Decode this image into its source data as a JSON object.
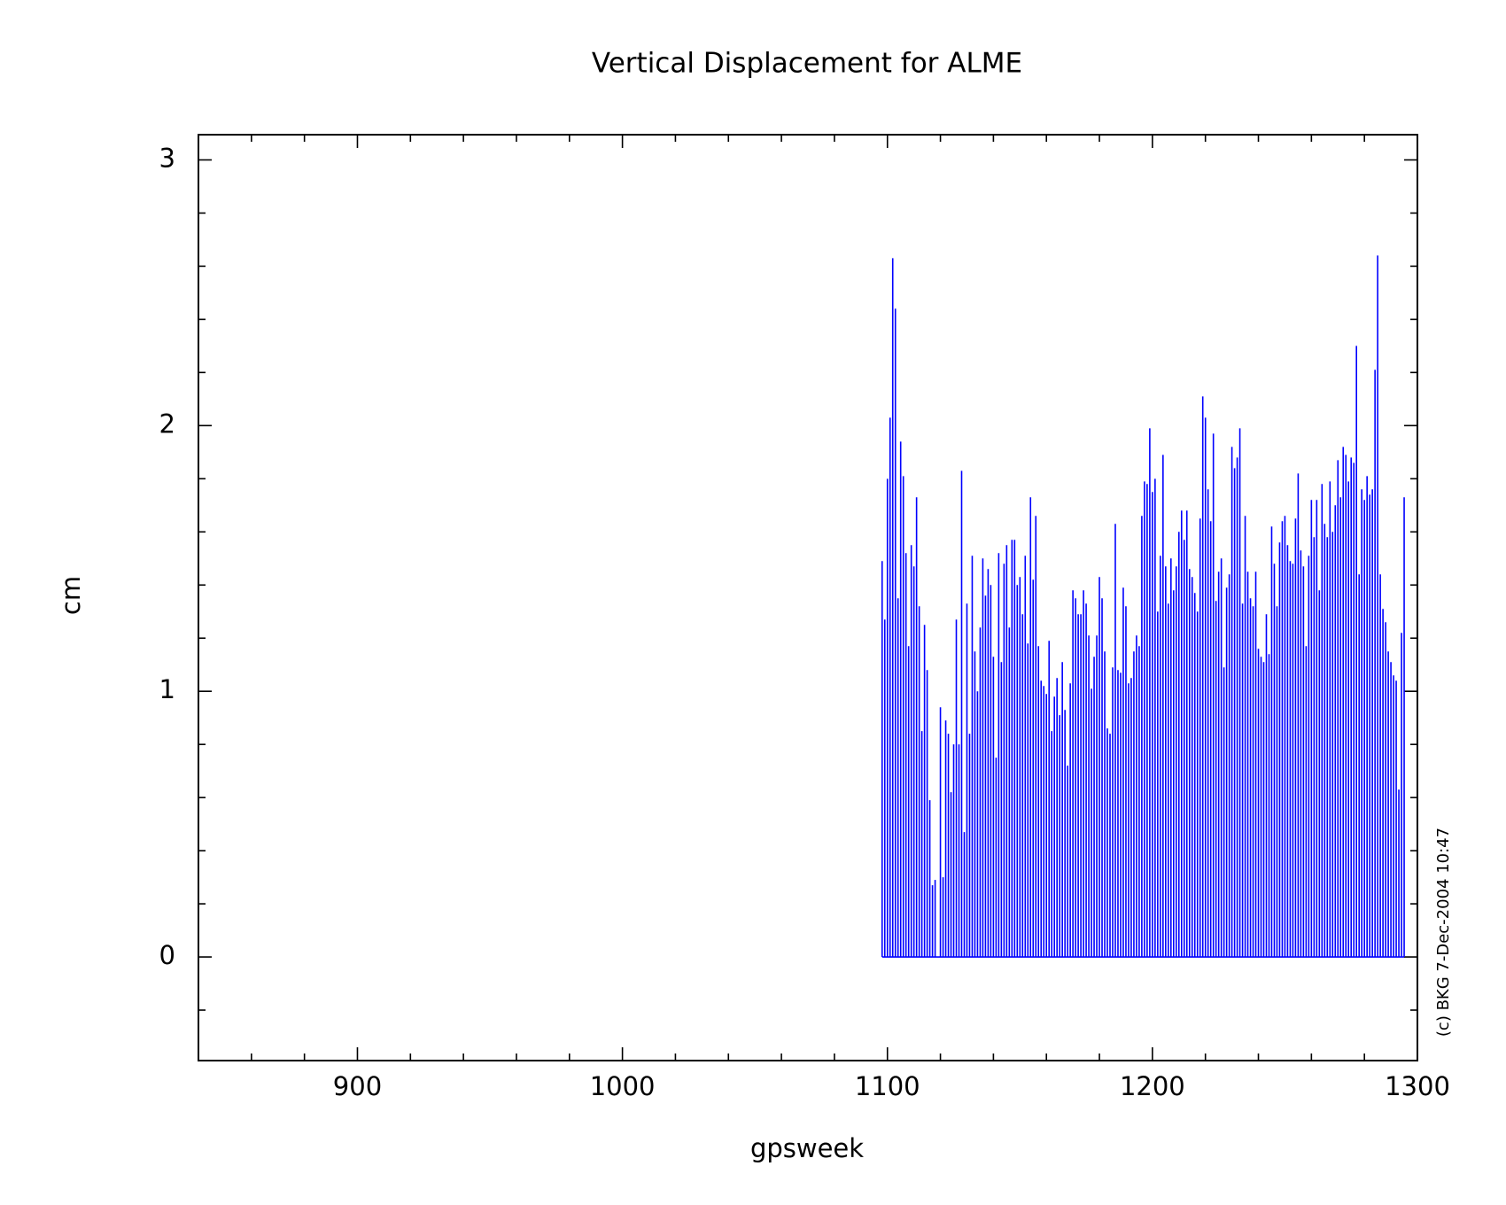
{
  "chart_data": {
    "type": "spike",
    "title": "Vertical Displacement for ALME",
    "x_label": "gpsweek",
    "y_label": "cm",
    "annotation": "(c) BKG 7-Dec-2004 10:47",
    "color": "#0000ff",
    "xlim": [
      840,
      1300
    ],
    "ylim": [
      -0.39,
      3.095
    ],
    "xticks": [
      900,
      1000,
      1100,
      1200,
      1300
    ],
    "yticks": [
      0,
      1,
      2,
      3
    ],
    "xminorticks": [
      860,
      880,
      920,
      940,
      960,
      980,
      1020,
      1040,
      1060,
      1080,
      1120,
      1140,
      1160,
      1180,
      1220,
      1240,
      1260,
      1280
    ],
    "yminorticks": [
      -0.2,
      0.2,
      0.4,
      0.6,
      0.8,
      1.2,
      1.4,
      1.6,
      1.8,
      2.2,
      2.4,
      2.6,
      2.8
    ],
    "x": [
      1098,
      1099,
      1100,
      1101,
      1102,
      1103,
      1104,
      1105,
      1106,
      1107,
      1108,
      1109,
      1110,
      1111,
      1112,
      1113,
      1114,
      1115,
      1116,
      1117,
      1118,
      1119,
      1120,
      1121,
      1122,
      1123,
      1124,
      1125,
      1126,
      1127,
      1128,
      1129,
      1130,
      1131,
      1132,
      1133,
      1134,
      1135,
      1136,
      1137,
      1138,
      1139,
      1140,
      1141,
      1142,
      1143,
      1144,
      1145,
      1146,
      1147,
      1148,
      1149,
      1150,
      1151,
      1152,
      1153,
      1154,
      1155,
      1156,
      1157,
      1158,
      1159,
      1160,
      1161,
      1162,
      1163,
      1164,
      1165,
      1166,
      1167,
      1168,
      1169,
      1170,
      1171,
      1172,
      1173,
      1174,
      1175,
      1176,
      1177,
      1178,
      1179,
      1180,
      1181,
      1182,
      1183,
      1184,
      1185,
      1186,
      1187,
      1188,
      1189,
      1190,
      1191,
      1192,
      1193,
      1194,
      1195,
      1196,
      1197,
      1198,
      1199,
      1200,
      1201,
      1202,
      1203,
      1204,
      1205,
      1206,
      1207,
      1208,
      1209,
      1210,
      1211,
      1212,
      1213,
      1214,
      1215,
      1216,
      1217,
      1218,
      1219,
      1220,
      1221,
      1222,
      1223,
      1224,
      1225,
      1226,
      1227,
      1228,
      1229,
      1230,
      1231,
      1232,
      1233,
      1234,
      1235,
      1236,
      1237,
      1238,
      1239,
      1240,
      1241,
      1242,
      1243,
      1244,
      1245,
      1246,
      1247,
      1248,
      1249,
      1250,
      1251,
      1252,
      1253,
      1254,
      1255,
      1256,
      1257,
      1258,
      1259,
      1260,
      1261,
      1262,
      1263,
      1264,
      1265,
      1266,
      1267,
      1268,
      1269,
      1270,
      1271,
      1272,
      1273,
      1274,
      1275,
      1276,
      1277,
      1278,
      1279,
      1280,
      1281,
      1282,
      1283,
      1284,
      1285,
      1286,
      1287,
      1288,
      1289,
      1290,
      1291,
      1292,
      1293,
      1294,
      1295
    ],
    "values": [
      1.49,
      1.27,
      1.8,
      2.03,
      2.63,
      2.44,
      1.35,
      1.94,
      1.81,
      1.52,
      1.17,
      1.55,
      1.47,
      1.73,
      1.32,
      0.85,
      1.25,
      1.08,
      0.59,
      0.27,
      0.29,
      null,
      0.94,
      0.3,
      0.89,
      0.84,
      0.62,
      0.8,
      1.27,
      0.8,
      1.83,
      0.47,
      1.33,
      0.84,
      1.51,
      1.15,
      1.0,
      1.24,
      1.5,
      1.36,
      1.46,
      1.4,
      1.13,
      0.75,
      1.52,
      1.11,
      1.48,
      1.55,
      1.24,
      1.57,
      1.57,
      1.4,
      1.43,
      1.29,
      1.51,
      1.18,
      1.73,
      1.42,
      1.66,
      1.17,
      1.04,
      1.02,
      0.99,
      1.19,
      0.85,
      0.98,
      1.05,
      0.91,
      1.11,
      0.93,
      0.72,
      1.03,
      1.38,
      1.35,
      1.29,
      1.29,
      1.38,
      1.33,
      1.21,
      1.01,
      1.13,
      1.21,
      1.43,
      1.35,
      1.15,
      0.86,
      0.84,
      1.09,
      1.63,
      1.08,
      1.07,
      1.39,
      1.32,
      1.03,
      1.05,
      1.15,
      1.21,
      1.17,
      1.66,
      1.79,
      1.78,
      1.99,
      1.75,
      1.8,
      1.3,
      1.51,
      1.89,
      1.47,
      1.33,
      1.5,
      1.38,
      1.47,
      1.6,
      1.68,
      1.57,
      1.68,
      1.46,
      1.43,
      1.37,
      1.3,
      1.65,
      2.11,
      2.03,
      1.76,
      1.64,
      1.97,
      1.34,
      1.45,
      1.5,
      1.09,
      1.39,
      1.44,
      1.92,
      1.84,
      1.88,
      1.99,
      1.33,
      1.66,
      1.45,
      1.35,
      1.32,
      1.45,
      1.16,
      1.13,
      1.11,
      1.29,
      1.14,
      1.62,
      1.48,
      1.32,
      1.56,
      1.64,
      1.66,
      1.55,
      1.49,
      1.48,
      1.65,
      1.82,
      1.53,
      1.47,
      1.17,
      1.51,
      1.72,
      1.58,
      1.72,
      1.38,
      1.78,
      1.63,
      1.58,
      1.79,
      1.6,
      1.7,
      1.87,
      1.73,
      1.92,
      1.89,
      1.79,
      1.88,
      1.86,
      2.3,
      1.44,
      1.76,
      1.72,
      1.81,
      1.74,
      1.76,
      2.21,
      2.64,
      1.44,
      1.31,
      1.26,
      1.15,
      1.11,
      1.06,
      1.04,
      0.63,
      1.22,
      1.73
    ]
  }
}
